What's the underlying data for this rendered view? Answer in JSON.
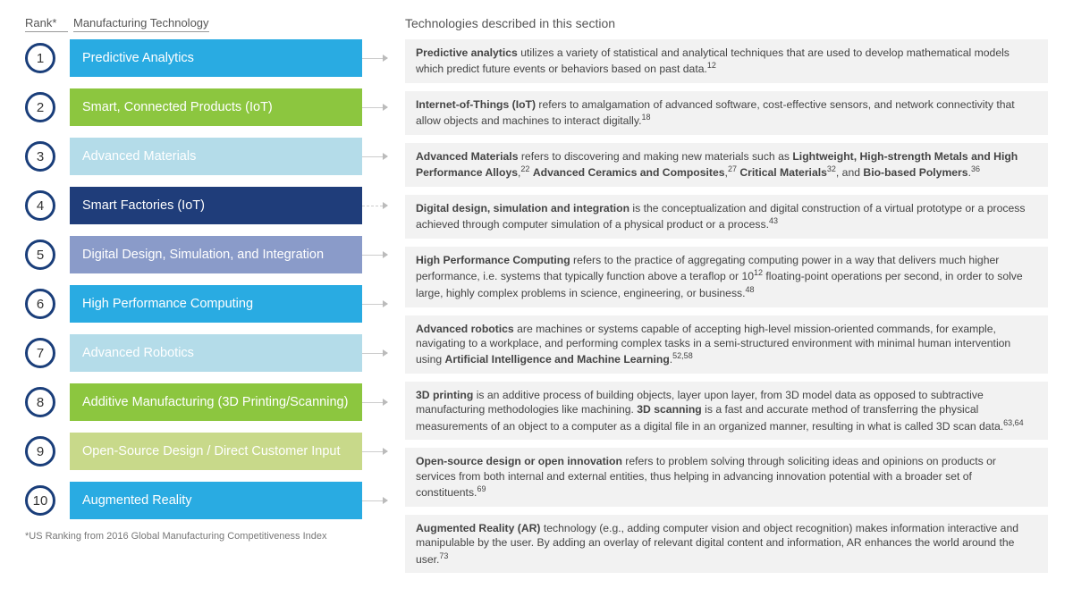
{
  "headers": {
    "rank": "Rank*",
    "tech": "Manufacturing Technology",
    "right": "Technologies described in this section"
  },
  "footnote": "*US Ranking from 2016 Global Manufacturing Competitiveness Index",
  "colors": {
    "circle_border": "#1a3e7a",
    "desc_bg": "#f2f2f2"
  },
  "rows": [
    {
      "rank": "1",
      "label": "Predictive Analytics",
      "bar_color": "#29abe2",
      "connector": "solid"
    },
    {
      "rank": "2",
      "label": "Smart, Connected Products (IoT)",
      "bar_color": "#8cc63f",
      "connector": "solid"
    },
    {
      "rank": "3",
      "label": "Advanced Materials",
      "bar_color": "#b4dce9",
      "connector": "solid"
    },
    {
      "rank": "4",
      "label": "Smart Factories (IoT)",
      "bar_color": "#1f3d7a",
      "connector": "dashed"
    },
    {
      "rank": "5",
      "label": "Digital Design, Simulation, and Integration",
      "bar_color": "#8a9bc9",
      "connector": "solid"
    },
    {
      "rank": "6",
      "label": "High Performance Computing",
      "bar_color": "#29abe2",
      "connector": "solid"
    },
    {
      "rank": "7",
      "label": "Advanced Robotics",
      "bar_color": "#b4dce9",
      "connector": "solid"
    },
    {
      "rank": "8",
      "label": "Additive Manufacturing (3D Printing/Scanning)",
      "bar_color": "#8cc63f",
      "connector": "solid"
    },
    {
      "rank": "9",
      "label": "Open-Source Design / Direct Customer Input",
      "bar_color": "#c8d98a",
      "connector": "solid"
    },
    {
      "rank": "10",
      "label": "Augmented Reality",
      "bar_color": "#29abe2",
      "connector": "solid"
    }
  ],
  "descriptions": [
    {
      "html": "<b>Predictive analytics</b> utilizes a variety of statistical and analytical techniques that are used to develop mathematical models which predict future events or behaviors based on past data.<sup>12</sup>"
    },
    {
      "html": "<b>Internet-of-Things (IoT)</b> refers to amalgamation of advanced software, cost-effective sensors, and network connectivity that allow objects and machines to interact digitally.<sup>18</sup>"
    },
    {
      "html": "<b>Advanced Materials</b> refers to discovering and making new materials such as <b>Lightweight, High-strength Metals and High Performance Alloys</b>,<sup>22</sup> <b>Advanced Ceramics and Composites</b>,<sup>27</sup> <b>Critical Materials</b><sup>32</sup>, and <b>Bio-based Polymers</b>.<sup>36</sup>"
    },
    {
      "html": "<b>Digital design, simulation and integration</b> is the conceptualization and digital construction of a virtual prototype or a process achieved through computer simulation of a physical product or a process.<sup>43</sup>"
    },
    {
      "html": "<b>High Performance Computing</b> refers to the practice of aggregating computing power in a way that delivers much higher performance, i.e. systems that typically function above a teraflop or 10<sup>12</sup> floating-point operations per second, in order to solve large, highly complex problems in science, engineering, or business.<sup>48</sup>"
    },
    {
      "html": "<b>Advanced robotics</b> are machines or systems capable of accepting high-level mission-oriented commands, for example, navigating to a workplace, and performing complex tasks in a semi-structured environment with minimal human intervention using <b>Artificial Intelligence and Machine Learning</b>.<sup>52,58</sup>"
    },
    {
      "html": "<b>3D printing</b> is an additive process of building objects, layer upon layer, from 3D model data as opposed to subtractive manufacturing methodologies like machining. <b>3D scanning</b> is a fast and accurate method of transferring the physical measurements of an object to a computer as a digital file in an organized manner, resulting in what is called 3D scan data.<sup>63,64</sup>"
    },
    {
      "html": "<b>Open-source design or open innovation</b> refers to problem solving through soliciting ideas and opinions on products or services from both internal and external entities, thus helping in advancing innovation potential with a broader set of constituents.<sup>69</sup>"
    },
    {
      "html": "<b>Augmented Reality (AR)</b> technology (e.g., adding computer vision and object recognition) makes information interactive and manipulable by the user. By adding an overlay of relevant digital content and information, AR enhances the world around the user.<sup>73</sup>"
    }
  ]
}
